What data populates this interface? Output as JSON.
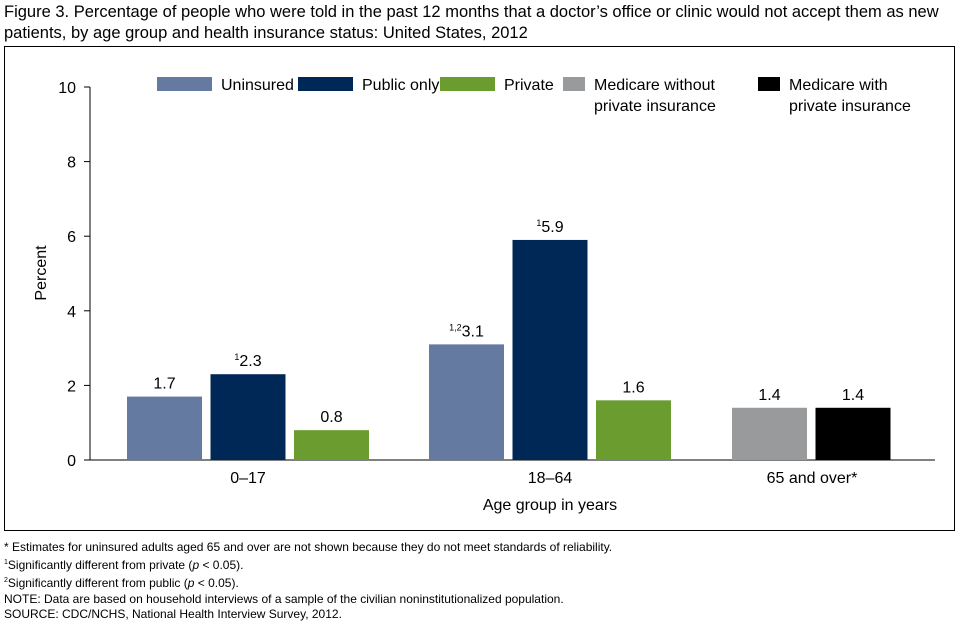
{
  "title": "Figure 3. Percentage of people who were told in the past 12 months that a doctor’s office or clinic would not accept them as new patients, by age group and health insurance status: United States, 2012",
  "chart_data": {
    "type": "bar",
    "title": "Figure 3. Percentage of people who were told in the past 12 months that a doctor’s office or clinic would not accept them as new patients, by age group and health insurance status: United States, 2012",
    "xlabel": "Age group in years",
    "ylabel": "Percent",
    "ylim": [
      0,
      10
    ],
    "yticks": [
      0,
      2,
      4,
      6,
      8,
      10
    ],
    "grid": false,
    "legend": "top",
    "categories": [
      "0–17",
      "18–64",
      "65 and over*"
    ],
    "series": [
      {
        "name": "Uninsured",
        "color": "#647aa1",
        "values": [
          1.7,
          3.1,
          null
        ],
        "labels": [
          "1.7",
          "3.1",
          null
        ],
        "footnotes": [
          "",
          "1,2",
          null
        ]
      },
      {
        "name": "Public only",
        "color": "#002856",
        "values": [
          2.3,
          5.9,
          null
        ],
        "labels": [
          "2.3",
          "5.9",
          null
        ],
        "footnotes": [
          "1",
          "1",
          null
        ]
      },
      {
        "name": "Private",
        "color": "#6a9c30",
        "values": [
          0.8,
          1.6,
          null
        ],
        "labels": [
          "0.8",
          "1.6",
          null
        ],
        "footnotes": [
          "",
          "",
          null
        ]
      },
      {
        "name": "Medicare without private insurance",
        "legend_lines": [
          "Medicare without",
          "private insurance"
        ],
        "color": "#999a9c",
        "values": [
          null,
          null,
          1.4
        ],
        "labels": [
          null,
          null,
          "1.4"
        ],
        "footnotes": [
          null,
          null,
          ""
        ]
      },
      {
        "name": "Medicare with private insurance",
        "legend_lines": [
          "Medicare with",
          "private insurance"
        ],
        "color": "#000000",
        "values": [
          null,
          null,
          1.4
        ],
        "labels": [
          null,
          null,
          "1.4"
        ],
        "footnotes": [
          null,
          null,
          ""
        ]
      }
    ]
  },
  "notes": {
    "asterisk": "* Estimates for uninsured adults aged 65 and over are not shown because they do not meet standards of reliability.",
    "fn1_mark": "1",
    "fn1_a": "Significantly different from private (",
    "fn1_p": "p",
    "fn1_b": " < 0.05).",
    "fn2_mark": "2",
    "fn2_a": "Significantly different from public (",
    "fn2_p": "p",
    "fn2_b": " < 0.05).",
    "note": "NOTE: Data are based on household interviews of a sample of the civilian noninstitutionalized population.",
    "source": "SOURCE: CDC/NCHS, National Health Interview Survey, 2012."
  }
}
